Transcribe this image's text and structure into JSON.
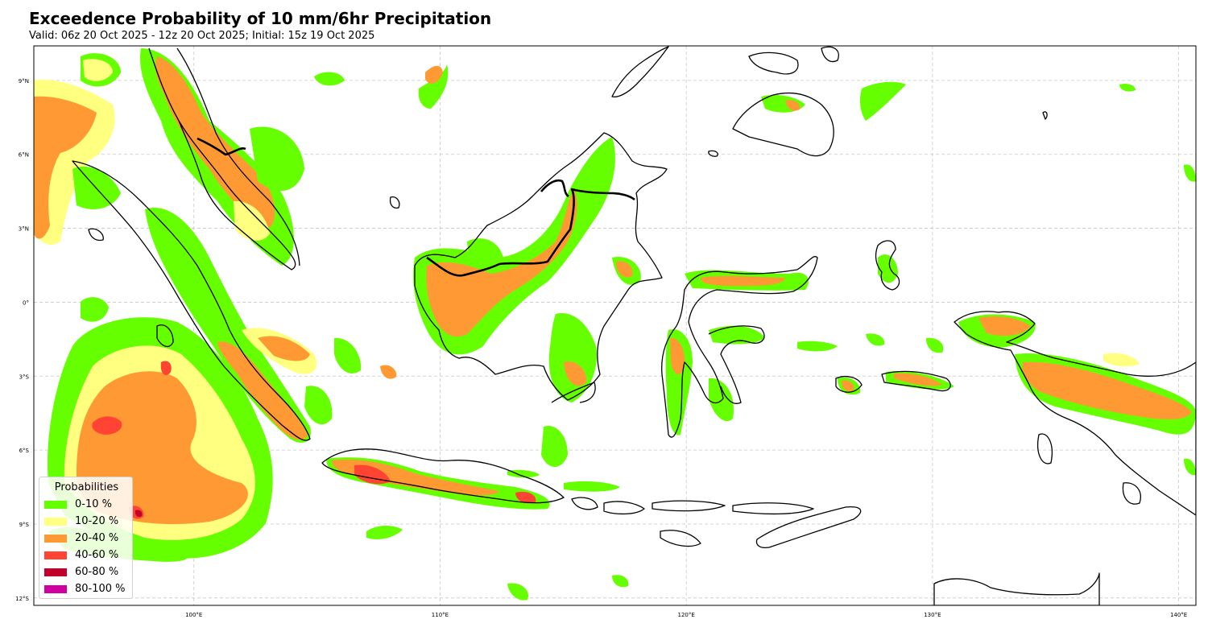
{
  "title": "Exceedence Probability of 10 mm/6hr Precipitation",
  "subtitle": "Valid: 06z 20 Oct 2025 - 12z 20 Oct 2025; Initial: 15z 19 Oct 2025",
  "map": {
    "lon_range": [
      93.5,
      140.7
    ],
    "lat_range": [
      -12.3,
      10.4
    ],
    "lon_ticks": [
      {
        "value": 100,
        "label": "100°E"
      },
      {
        "value": 110,
        "label": "110°E"
      },
      {
        "value": 120,
        "label": "120°E"
      },
      {
        "value": 130,
        "label": "130°E"
      },
      {
        "value": 140,
        "label": "140°E"
      }
    ],
    "lat_ticks": [
      {
        "value": 9,
        "label": "9°N"
      },
      {
        "value": 6,
        "label": "6°N"
      },
      {
        "value": 3,
        "label": "3°N"
      },
      {
        "value": 0,
        "label": "0°"
      },
      {
        "value": -3,
        "label": "3°S"
      },
      {
        "value": -6,
        "label": "6°S"
      },
      {
        "value": -9,
        "label": "9°S"
      },
      {
        "value": -12,
        "label": "12°S"
      }
    ],
    "gridlines": true
  },
  "legend": {
    "title": "Probabilities",
    "placement": "lower-left",
    "items": [
      {
        "label": "0-10 %",
        "color": "#66ff00"
      },
      {
        "label": "10-20 %",
        "color": "#ffff80"
      },
      {
        "label": "20-40 %",
        "color": "#ff9933"
      },
      {
        "label": "40-60 %",
        "color": "#ff4433"
      },
      {
        "label": "60-80 %",
        "color": "#c0002a"
      },
      {
        "label": "80-100 %",
        "color": "#d000a0"
      }
    ]
  }
}
